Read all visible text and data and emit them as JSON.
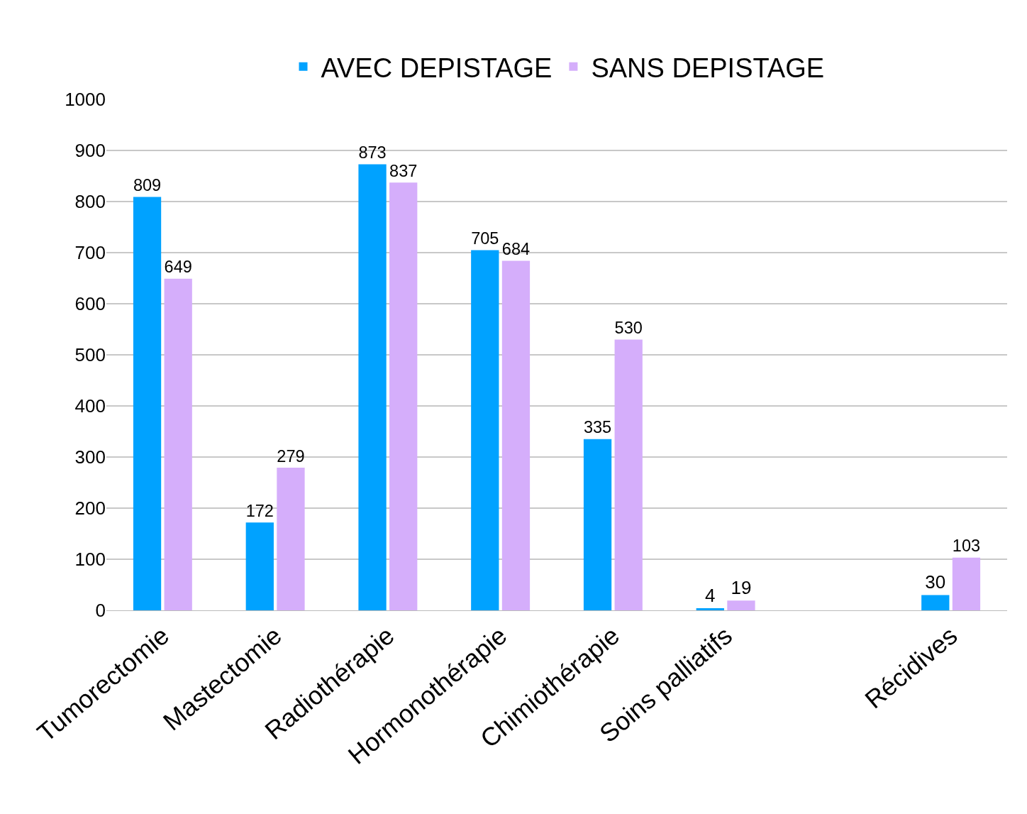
{
  "chart_data": {
    "type": "bar",
    "categories": [
      "Tumorectomie",
      "Mastectomie",
      "Radiothérapie",
      "Hormonothérapie",
      "Chimiothérapie",
      "Soins palliatifs",
      null,
      "Récidives"
    ],
    "series": [
      {
        "name": "AVEC DEPISTAGE",
        "color": "#00a2ff",
        "values": [
          809,
          172,
          873,
          705,
          335,
          4,
          null,
          30
        ]
      },
      {
        "name": "SANS DEPISTAGE",
        "color": "#d5aefb",
        "values": [
          649,
          279,
          837,
          684,
          530,
          19,
          null,
          103
        ]
      }
    ],
    "ylim": [
      0,
      1000
    ],
    "yticks": [
      0,
      100,
      200,
      300,
      400,
      500,
      600,
      700,
      800,
      900,
      1000
    ],
    "grid": "y",
    "legend": "top",
    "data_labels": true
  }
}
